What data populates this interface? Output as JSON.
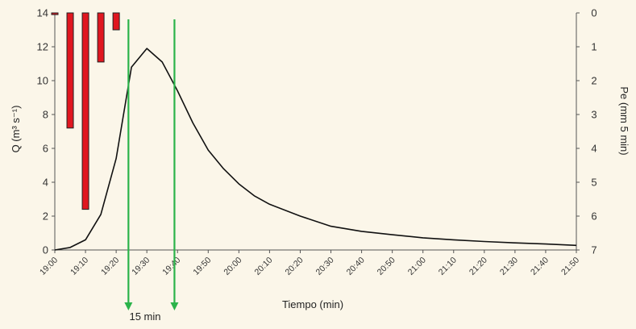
{
  "chart_data": {
    "type": "line",
    "xlabel": "Tiempo (min)",
    "ylabel_left": "Q (m³ s⁻¹)",
    "ylabel_right": "Pe (mm 5 min)",
    "x_ticks": [
      "19:00",
      "19:10",
      "19:20",
      "19:30",
      "19:40",
      "19:50",
      "20:00",
      "20:10",
      "20:20",
      "20:30",
      "20:40",
      "20:50",
      "21:00",
      "21:10",
      "21:20",
      "21:30",
      "21:40",
      "21:50"
    ],
    "ylim_left": [
      0,
      14
    ],
    "y_ticks_left": [
      0,
      2,
      4,
      6,
      8,
      10,
      12,
      14
    ],
    "ylim_right_inverted": [
      0,
      7
    ],
    "y_ticks_right": [
      0,
      1,
      2,
      3,
      4,
      5,
      6,
      7
    ],
    "series": [
      {
        "kind": "line",
        "axis": "left",
        "color": "#111111",
        "points": [
          [
            "19:00",
            0.0
          ],
          [
            "19:05",
            0.15
          ],
          [
            "19:10",
            0.6
          ],
          [
            "19:15",
            2.1
          ],
          [
            "19:20",
            5.4
          ],
          [
            "19:25",
            10.8
          ],
          [
            "19:30",
            11.9
          ],
          [
            "19:35",
            11.1
          ],
          [
            "19:40",
            9.4
          ],
          [
            "19:45",
            7.5
          ],
          [
            "19:50",
            5.9
          ],
          [
            "19:55",
            4.8
          ],
          [
            "20:00",
            3.9
          ],
          [
            "20:05",
            3.2
          ],
          [
            "20:10",
            2.7
          ],
          [
            "20:20",
            2.0
          ],
          [
            "20:30",
            1.4
          ],
          [
            "20:40",
            1.1
          ],
          [
            "20:50",
            0.9
          ],
          [
            "21:00",
            0.72
          ],
          [
            "21:10",
            0.6
          ],
          [
            "21:20",
            0.5
          ],
          [
            "21:30",
            0.42
          ],
          [
            "21:40",
            0.35
          ],
          [
            "21:50",
            0.27
          ]
        ]
      },
      {
        "kind": "bar",
        "axis": "right",
        "color": "#e0161f",
        "bars": [
          [
            "19:00",
            0.05
          ],
          [
            "19:05",
            3.4
          ],
          [
            "19:10",
            5.8
          ],
          [
            "19:15",
            1.45
          ],
          [
            "19:20",
            0.5
          ]
        ]
      }
    ],
    "annotations": {
      "arrows": [
        {
          "x": "19:24",
          "label": ""
        },
        {
          "x": "19:39",
          "label": ""
        }
      ],
      "arrow_color": "#2bb34a",
      "span_label": "15 min"
    }
  }
}
